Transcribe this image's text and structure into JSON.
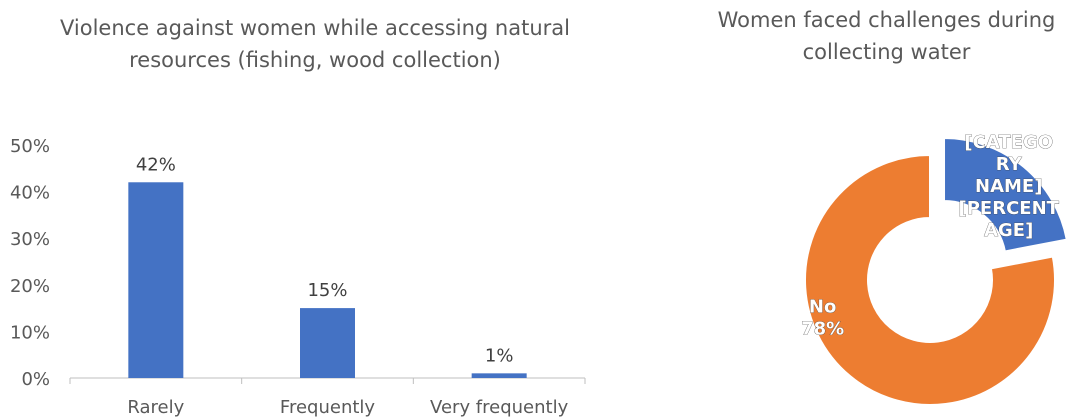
{
  "chart_data": [
    {
      "type": "bar",
      "title": "Violence against women while accessing natural resources (fishing, wood collection)",
      "categories": [
        "Rarely",
        "Frequently",
        "Very frequently"
      ],
      "values": [
        0.42,
        0.15,
        0.01
      ],
      "data_labels": [
        "42%",
        "15%",
        "1%"
      ],
      "y_ticks": [
        "0%",
        "10%",
        "20%",
        "30%",
        "40%",
        "50%"
      ],
      "ylim": [
        0,
        0.5
      ],
      "grid": false,
      "bar_color": "#4472c4"
    },
    {
      "type": "pie",
      "subtype": "donut",
      "title": "Women faced challenges during collecting water",
      "slices": [
        {
          "label": "[CATEGORY NAME] [PERCENTAGE]",
          "value": 0.22,
          "color": "#4472c4",
          "exploded": true,
          "label_lines": [
            "[CATEGO",
            "RY",
            "NAME]",
            "[PERCENT",
            "AGE]"
          ]
        },
        {
          "label": "No",
          "value": 0.78,
          "color": "#ed7d31",
          "exploded": false,
          "label_lines": [
            "No",
            "78%"
          ]
        }
      ]
    }
  ]
}
